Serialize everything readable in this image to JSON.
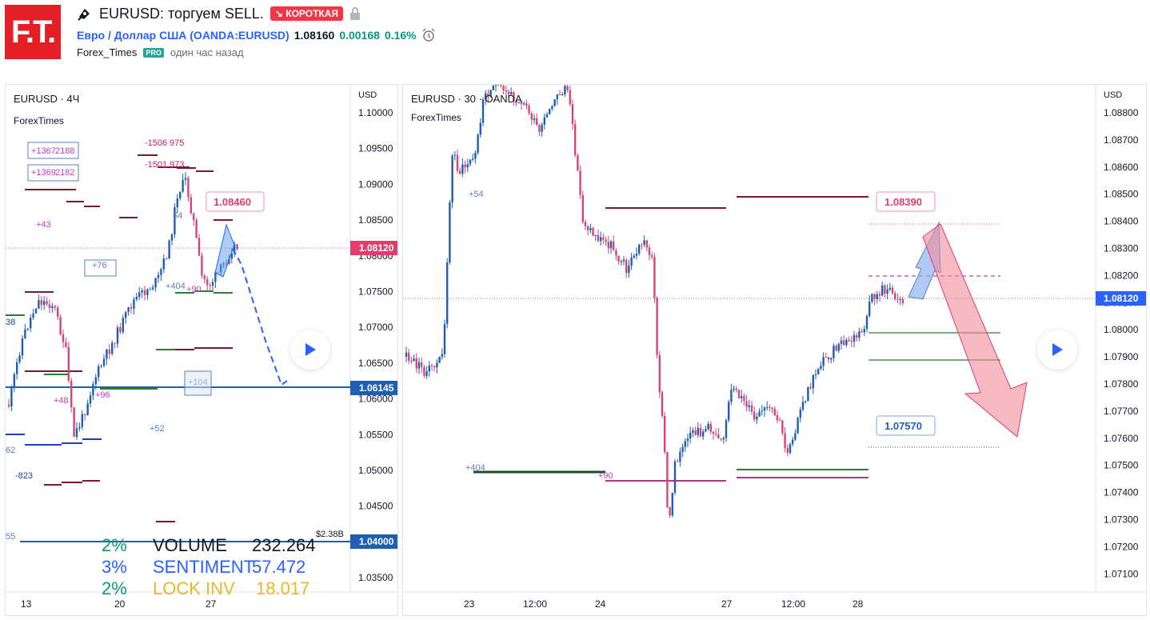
{
  "header": {
    "logo_text": "F.T.",
    "idea_title": "EURUSD: торгуем SELL.",
    "direction_badge": "↘ КОРОТКАЯ",
    "symbol_name": "Евро / Доллар США",
    "symbol_code": "(OANDA:EURUSD)",
    "price": "1.08160",
    "change": "0.00168",
    "change_pct": "0.16%",
    "author": "Forex_Times",
    "author_badge": "PRO",
    "published": "один час назад"
  },
  "left_chart": {
    "title": "EURUSD · 4Ч",
    "source": "ForexTimes",
    "currency": "USD",
    "y_ticks": [
      "1.10000",
      "1.09500",
      "1.09000",
      "1.08500",
      "1.08000",
      "1.07500",
      "1.07000",
      "1.06500",
      "1.06000",
      "1.05500",
      "1.05000",
      "1.04500",
      "1.04000",
      "1.03500"
    ],
    "x_ticks": [
      "13",
      "20",
      "27"
    ],
    "price_tag": "1.08120",
    "level_1": "1.06145",
    "level_2": "1.04000",
    "target_label": "1.08460",
    "volume_note": "$2.38B",
    "annotations": [
      "+1367",
      "2188",
      "+1369",
      "2182",
      "-1506",
      "975",
      "-1501",
      "973",
      "+43",
      "+76",
      "+404",
      "+90",
      "54",
      "+48",
      "+96",
      "+104",
      "+52",
      "-823",
      "62",
      "55",
      "38"
    ],
    "stats": [
      {
        "pct": "2%",
        "name": "VOLUME",
        "value": "232.264",
        "color": "#131722",
        "pct_color": "#089981"
      },
      {
        "pct": "3%",
        "name": "SENTIMENT",
        "value": "57.472",
        "color": "#2962ff",
        "pct_color": "#2962ff"
      },
      {
        "pct": "2%",
        "name": "LOCK INV",
        "value": "18.017",
        "color": "#e8b923",
        "pct_color": "#089981"
      }
    ]
  },
  "right_chart": {
    "title": "EURUSD · 30 · OANDA",
    "source": "ForexTimes",
    "currency": "USD",
    "y_ticks": [
      "1.08800",
      "1.08700",
      "1.08600",
      "1.08500",
      "1.08400",
      "1.08300",
      "1.08200",
      "1.08100",
      "1.08000",
      "1.07900",
      "1.07800",
      "1.07700",
      "1.07600",
      "1.07500",
      "1.07400",
      "1.07300",
      "1.07200",
      "1.07100"
    ],
    "x_ticks": [
      "23",
      "12:00",
      "24",
      "27",
      "12:00",
      "28"
    ],
    "price_tag": "1.08120",
    "target_high": "1.08390",
    "target_low": "1.07570",
    "annotations": [
      "+54",
      "+404",
      "+90"
    ]
  },
  "colors": {
    "bull": "#26a69a",
    "bear": "#ef5350",
    "candle_up": "#1e5fb4",
    "candle_down": "#d6457a",
    "price_tag_left": "#e23d6e",
    "price_tag_right": "#2962ff",
    "level_blue": "#1e5fb4"
  }
}
